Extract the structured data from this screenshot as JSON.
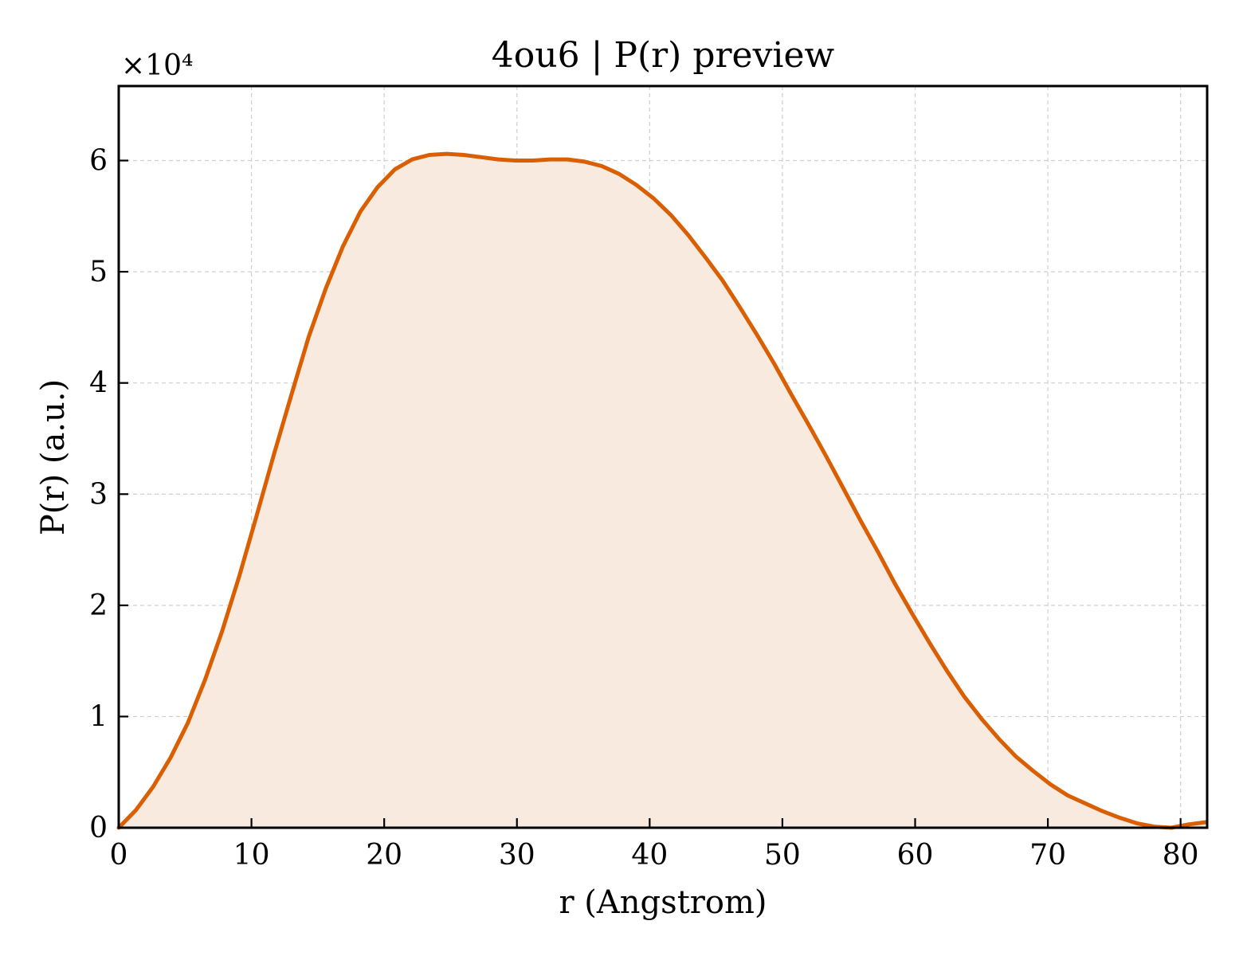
{
  "chart_data": {
    "type": "area",
    "title": "4ou6 | P(r) preview",
    "xlabel": "r (Angstrom)",
    "ylabel": "P(r) (a.u.)",
    "y_offset_label": "×10⁴",
    "y_scale": 10000,
    "xlim": [
      0,
      82
    ],
    "ylim": [
      0,
      66700
    ],
    "xticks": [
      0,
      10,
      20,
      30,
      40,
      50,
      60,
      70,
      80
    ],
    "yticks": [
      0,
      1,
      2,
      3,
      4,
      5,
      6
    ],
    "grid": true,
    "colors": {
      "line": "#d95f02",
      "fill": "#f9eae0"
    },
    "series": [
      {
        "x": [
          0,
          1.3,
          2.6,
          3.9,
          5.2,
          6.5,
          7.8,
          9.1,
          10.4,
          11.7,
          13.0,
          14.3,
          15.6,
          16.9,
          18.2,
          19.5,
          20.8,
          22.1,
          23.4,
          24.7,
          26.0,
          27.3,
          28.6,
          29.9,
          31.2,
          32.5,
          33.8,
          35.1,
          36.4,
          37.7,
          39.0,
          40.3,
          41.6,
          42.9,
          44.2,
          45.5,
          46.8,
          48.1,
          49.4,
          50.7,
          52.0,
          53.3,
          54.6,
          55.9,
          57.2,
          58.5,
          59.8,
          61.1,
          62.4,
          63.7,
          65.0,
          66.3,
          67.6,
          68.9,
          70.2,
          71.5,
          72.8,
          74.1,
          75.4,
          76.7,
          78.0,
          79.3,
          80.6,
          81.9
        ],
        "y": [
          0,
          1600,
          3700,
          6300,
          9400,
          13300,
          17700,
          22700,
          28100,
          33600,
          38900,
          44100,
          48500,
          52300,
          55400,
          57600,
          59200,
          60100,
          60500,
          60600,
          60500,
          60300,
          60100,
          60000,
          60000,
          60100,
          60100,
          59900,
          59500,
          58800,
          57800,
          56600,
          55100,
          53300,
          51300,
          49200,
          46800,
          44300,
          41700,
          38900,
          36200,
          33400,
          30500,
          27600,
          24800,
          21900,
          19200,
          16600,
          14100,
          11800,
          9800,
          8000,
          6400,
          5100,
          3900,
          2900,
          2200,
          1500,
          900,
          400,
          100,
          0,
          300,
          500
        ]
      }
    ]
  }
}
